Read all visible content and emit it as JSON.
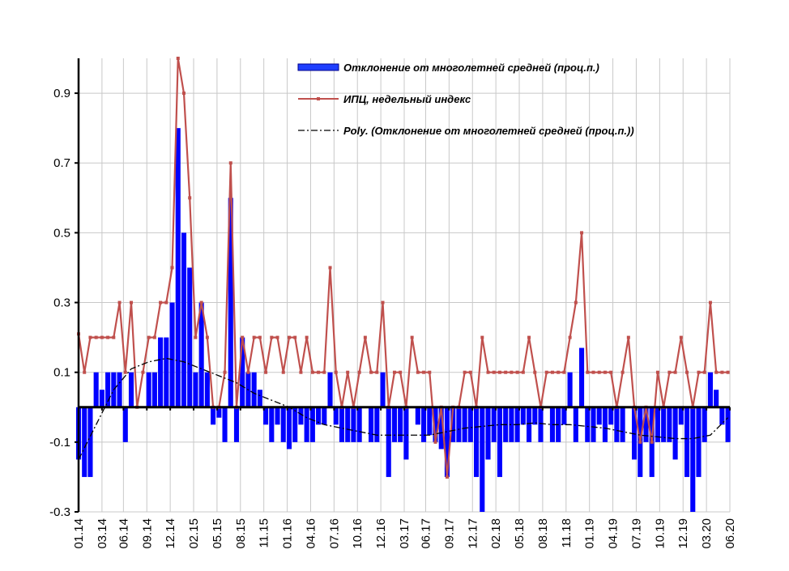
{
  "chart_data": {
    "type": "bar",
    "x": [
      0,
      3,
      6,
      9,
      12,
      15,
      18,
      21,
      24,
      27,
      30,
      33,
      36,
      39,
      42,
      45,
      48,
      51,
      54,
      57,
      60,
      63,
      66,
      69,
      72,
      75,
      78,
      81,
      84,
      87,
      90,
      93,
      96,
      99,
      102,
      105,
      108,
      111,
      114,
      117,
      120,
      123,
      126,
      129,
      132,
      135,
      138,
      141,
      144,
      147,
      150,
      153,
      156,
      159,
      162,
      165,
      168,
      171,
      174,
      177,
      180,
      183,
      186,
      189,
      192,
      195,
      198,
      201,
      204,
      207,
      210,
      213,
      216,
      219,
      222,
      225,
      228,
      231,
      234,
      237,
      240,
      243,
      246,
      249,
      252,
      255,
      258,
      261,
      264,
      267,
      270,
      273,
      276,
      279,
      282,
      285,
      288,
      291,
      294,
      297,
      300,
      303,
      306,
      309,
      312,
      315,
      318,
      321,
      324,
      327,
      330,
      333
    ],
    "series": [
      {
        "name": "Отклонение от многолетней средней (проц.п.)",
        "type": "bar",
        "color": "#0000ff",
        "values": [
          -0.15,
          -0.2,
          -0.2,
          0.1,
          0.05,
          0.1,
          0.1,
          0.1,
          -0.1,
          0.1,
          0,
          0,
          0.1,
          0.1,
          0.2,
          0.2,
          0.3,
          0.8,
          0.5,
          0.4,
          0.1,
          0.3,
          0.1,
          -0.05,
          -0.03,
          -0.1,
          0.6,
          -0.1,
          0.2,
          0.1,
          0.1,
          0.05,
          -0.05,
          -0.1,
          -0.05,
          -0.1,
          -0.12,
          -0.1,
          -0.05,
          -0.1,
          -0.1,
          -0.05,
          -0.05,
          0.1,
          -0.05,
          -0.1,
          -0.1,
          -0.1,
          -0.1,
          0,
          -0.1,
          -0.1,
          0.1,
          -0.2,
          -0.1,
          -0.1,
          -0.15,
          0,
          -0.05,
          -0.1,
          -0.08,
          -0.1,
          -0.12,
          -0.2,
          -0.1,
          -0.1,
          -0.1,
          -0.1,
          -0.2,
          -0.3,
          -0.15,
          -0.1,
          -0.2,
          -0.1,
          -0.1,
          -0.1,
          -0.05,
          -0.1,
          -0.05,
          -0.1,
          0,
          -0.1,
          -0.1,
          -0.05,
          0.1,
          -0.1,
          0.17,
          -0.1,
          -0.1,
          -0.05,
          -0.1,
          -0.05,
          -0.1,
          -0.1,
          0,
          -0.15,
          -0.2,
          -0.1,
          -0.2,
          -0.1,
          -0.1,
          -0.1,
          -0.15,
          -0.05,
          -0.2,
          -0.3,
          -0.2,
          -0.1,
          0.1,
          0.05,
          -0.05,
          -0.1
        ]
      },
      {
        "name": "ИПЦ, недельный индекс",
        "type": "line",
        "color": "#c0504d",
        "marker": true,
        "values": [
          0.21,
          0.1,
          0.2,
          0.2,
          0.2,
          0.2,
          0.2,
          0.3,
          0.1,
          0.3,
          0,
          0.1,
          0.2,
          0.2,
          0.3,
          0.3,
          0.4,
          1.0,
          0.9,
          0.6,
          0.2,
          0.3,
          0.2,
          0,
          0,
          0.1,
          0.7,
          0,
          0.2,
          0.1,
          0.2,
          0.2,
          0.1,
          0.2,
          0.2,
          0.1,
          0.2,
          0.2,
          0.1,
          0.2,
          0.1,
          0.1,
          0.1,
          0.4,
          0.1,
          0,
          0.1,
          0,
          0.1,
          0.2,
          0.1,
          0.1,
          0.3,
          0,
          0.1,
          0.1,
          0,
          0.2,
          0.1,
          0.1,
          0.1,
          -0.1,
          0,
          -0.2,
          0,
          0,
          0.1,
          0.1,
          0,
          0.2,
          0.1,
          0.1,
          0.1,
          0.1,
          0.1,
          0.1,
          0.1,
          0.2,
          0.1,
          0,
          0.1,
          0.1,
          0.1,
          0.1,
          0.2,
          0.3,
          0.5,
          0.1,
          0.1,
          0.1,
          0.1,
          0.1,
          0,
          0.1,
          0.2,
          0,
          -0.1,
          0,
          -0.1,
          0.1,
          0,
          0.1,
          0.1,
          0.2,
          0.1,
          0,
          0.1,
          0.1,
          0.3,
          0.1,
          0.1,
          0.1
        ]
      },
      {
        "name": "Poly. (Отклонение от многолетней средней (проц.п.))",
        "type": "line",
        "color": "#000000",
        "dash": "dash-dot",
        "x": [
          0,
          9,
          18,
          27,
          36,
          45,
          54,
          63,
          72,
          81,
          90,
          99,
          108,
          117,
          126,
          135,
          144,
          153,
          162,
          171,
          180,
          189,
          198,
          207,
          216,
          225,
          234,
          243,
          252,
          261,
          270,
          279,
          288,
          297,
          306,
          315,
          324,
          333
        ],
        "values": [
          -0.15,
          -0.05,
          0.05,
          0.11,
          0.13,
          0.14,
          0.13,
          0.11,
          0.09,
          0.07,
          0.04,
          0.02,
          0,
          -0.03,
          -0.05,
          -0.06,
          -0.07,
          -0.08,
          -0.08,
          -0.08,
          -0.08,
          -0.07,
          -0.06,
          -0.055,
          -0.05,
          -0.05,
          -0.045,
          -0.05,
          -0.05,
          -0.055,
          -0.06,
          -0.07,
          -0.08,
          -0.085,
          -0.09,
          -0.09,
          -0.08,
          -0.03
        ]
      }
    ],
    "xlim": [
      0,
      334
    ],
    "xticks": [
      {
        "value": 0,
        "label": "01.14"
      },
      {
        "value": 12,
        "label": "03.14"
      },
      {
        "value": 23,
        "label": "06.14"
      },
      {
        "value": 35,
        "label": "09.14"
      },
      {
        "value": 47,
        "label": "12.14"
      },
      {
        "value": 59,
        "label": "02.15"
      },
      {
        "value": 71,
        "label": "05.15"
      },
      {
        "value": 83,
        "label": "08.15"
      },
      {
        "value": 95,
        "label": "11.15"
      },
      {
        "value": 107,
        "label": "01.16"
      },
      {
        "value": 119,
        "label": "04.16"
      },
      {
        "value": 131,
        "label": "07.16"
      },
      {
        "value": 143,
        "label": "10.16"
      },
      {
        "value": 155,
        "label": "12.16"
      },
      {
        "value": 167,
        "label": "03.17"
      },
      {
        "value": 178,
        "label": "06.17"
      },
      {
        "value": 190,
        "label": "09.17"
      },
      {
        "value": 202,
        "label": "12.17"
      },
      {
        "value": 214,
        "label": "02.18"
      },
      {
        "value": 226,
        "label": "05.18"
      },
      {
        "value": 238,
        "label": "08.18"
      },
      {
        "value": 250,
        "label": "11.18"
      },
      {
        "value": 262,
        "label": "01.19"
      },
      {
        "value": 274,
        "label": "04.19"
      },
      {
        "value": 286,
        "label": "07.19"
      },
      {
        "value": 298,
        "label": "10.19"
      },
      {
        "value": 310,
        "label": "12.19"
      },
      {
        "value": 322,
        "label": "03.20"
      },
      {
        "value": 334,
        "label": "06.20"
      }
    ],
    "ylim": [
      -0.3,
      1.0
    ],
    "yticks": [
      -0.3,
      -0.1,
      0.1,
      0.3,
      0.5,
      0.7,
      0.9
    ],
    "grid": true
  }
}
